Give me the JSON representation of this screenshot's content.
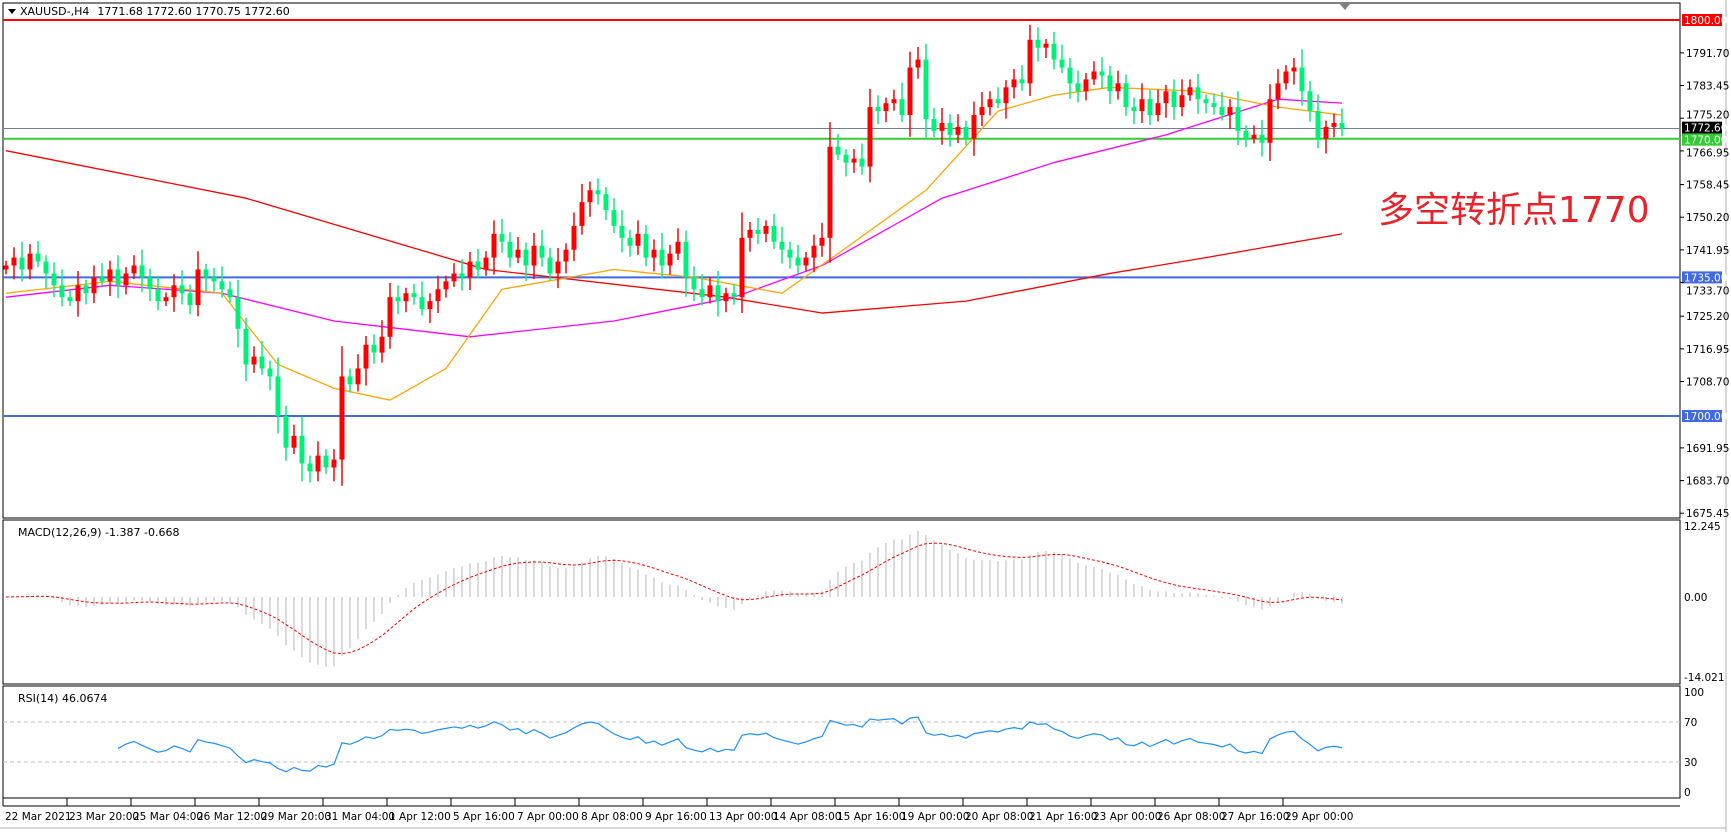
{
  "window": {
    "title": "XAUUSD-,H4",
    "ohlc": "1771.68 1772.60 1770.75 1772.60"
  },
  "annotation": "多空转折点1770",
  "colors": {
    "bull": "#ff0000",
    "bear": "#00f07a",
    "ma_fast": "#ffa500",
    "ma_mid": "#ff00ff",
    "ma_slow": "#ff0000",
    "level_1800": "#ff0000",
    "level_1770": "#32cd32",
    "level_support": "#4169e1",
    "bid": "#708090",
    "macd_hist": "#c0c0c0",
    "macd_signal": "#ff0000",
    "rsi": "#1e90ff"
  },
  "chart_data": {
    "type": "candlestick",
    "symbol": "XAUUSD-",
    "timeframe": "H4",
    "price_axis": {
      "ylim": [
        1675.45,
        1800.0
      ],
      "ticks": [
        "1791.70",
        "1783.45",
        "1775.20",
        "1766.95",
        "1758.45",
        "1750.20",
        "1741.95",
        "1733.70",
        "1725.20",
        "1716.95",
        "1708.70",
        "1691.95",
        "1683.70",
        "1675.45"
      ]
    },
    "time_axis": {
      "ticks": [
        "22 Mar 2021",
        "23 Mar 20:00",
        "25 Mar 04:00",
        "26 Mar 12:00",
        "29 Mar 20:00",
        "31 Mar 04:00",
        "1 Apr 12:00",
        "5 Apr 16:00",
        "7 Apr 00:00",
        "8 Apr 08:00",
        "9 Apr 16:00",
        "13 Apr 00:00",
        "14 Apr 08:00",
        "15 Apr 16:00",
        "19 Apr 00:00",
        "20 Apr 08:00",
        "21 Apr 16:00",
        "23 Apr 00:00",
        "26 Apr 08:00",
        "27 Apr 16:00",
        "29 Apr 00:00"
      ]
    },
    "closes": [
      1738,
      1740,
      1737,
      1741,
      1739,
      1736,
      1733,
      1730,
      1729,
      1733,
      1731,
      1735,
      1734,
      1737,
      1733,
      1736,
      1738,
      1735,
      1732,
      1729,
      1730,
      1733,
      1731,
      1728,
      1737,
      1735,
      1734,
      1732,
      1730,
      1722,
      1713,
      1715,
      1712,
      1710,
      1700,
      1692,
      1695,
      1688,
      1686,
      1690,
      1687,
      1689,
      1710,
      1708,
      1712,
      1718,
      1716,
      1720,
      1730,
      1729,
      1731,
      1730,
      1727,
      1729,
      1732,
      1734,
      1736,
      1735,
      1739,
      1737,
      1740,
      1746,
      1744,
      1740,
      1742,
      1738,
      1743,
      1740,
      1736,
      1739,
      1742,
      1748,
      1754,
      1757,
      1756,
      1752,
      1748,
      1745,
      1743,
      1746,
      1740,
      1742,
      1738,
      1741,
      1744,
      1735,
      1732,
      1730,
      1733,
      1729,
      1731,
      1730,
      1745,
      1747,
      1746,
      1748,
      1744,
      1742,
      1740,
      1738,
      1740,
      1743,
      1745,
      1768,
      1766,
      1764,
      1765,
      1763,
      1778,
      1777,
      1779,
      1780,
      1776,
      1788,
      1790,
      1775,
      1772,
      1774,
      1771,
      1773,
      1770,
      1776,
      1778,
      1780,
      1779,
      1783,
      1785,
      1784,
      1795,
      1793,
      1794,
      1790,
      1788,
      1784,
      1782,
      1785,
      1787,
      1786,
      1782,
      1784,
      1778,
      1777,
      1780,
      1776,
      1779,
      1782,
      1778,
      1781,
      1783,
      1780,
      1779,
      1778,
      1776,
      1778,
      1772,
      1770,
      1771,
      1769,
      1780,
      1784,
      1787,
      1788,
      1782,
      1777,
      1770,
      1773,
      1774,
      1772.6
    ],
    "moving_averages": {
      "fast": [
        [
          0,
          1731
        ],
        [
          13,
          1734
        ],
        [
          27,
          1731
        ],
        [
          34,
          1713
        ],
        [
          41,
          1707
        ],
        [
          48,
          1704
        ],
        [
          55,
          1712
        ],
        [
          62,
          1732
        ],
        [
          76,
          1737
        ],
        [
          86,
          1735
        ],
        [
          97,
          1731
        ],
        [
          104,
          1741
        ],
        [
          115,
          1757
        ],
        [
          124,
          1777
        ],
        [
          131,
          1781
        ],
        [
          138,
          1783
        ],
        [
          149,
          1782
        ],
        [
          159,
          1778
        ],
        [
          167,
          1776
        ]
      ],
      "mid": [
        [
          0,
          1730
        ],
        [
          13,
          1733
        ],
        [
          27,
          1731
        ],
        [
          41,
          1724
        ],
        [
          58,
          1720
        ],
        [
          76,
          1724
        ],
        [
          91,
          1730
        ],
        [
          102,
          1738
        ],
        [
          117,
          1755
        ],
        [
          131,
          1764
        ],
        [
          145,
          1771
        ],
        [
          159,
          1780
        ],
        [
          167,
          1779
        ]
      ],
      "slow": [
        [
          0,
          1767
        ],
        [
          30,
          1755
        ],
        [
          60,
          1737
        ],
        [
          90,
          1730
        ],
        [
          102,
          1726
        ],
        [
          120,
          1729
        ],
        [
          138,
          1736
        ],
        [
          150,
          1740
        ],
        [
          167,
          1746
        ]
      ]
    },
    "levels": [
      {
        "price": "1800.00",
        "kind": "resistance"
      },
      {
        "price": "1772.60",
        "kind": "bid"
      },
      {
        "price": "1770.00",
        "kind": "pivot"
      },
      {
        "price": "1735.00",
        "kind": "support"
      },
      {
        "price": "1700.00",
        "kind": "support"
      }
    ],
    "macd": {
      "label": "MACD(12,26,9) -1.387 -0.668",
      "params": [
        12,
        26,
        9
      ],
      "ylim": [
        -14.021,
        12.245
      ],
      "ticks": [
        "12.245",
        "0.00",
        "-14.021"
      ]
    },
    "rsi": {
      "label": "RSI(14) 46.0674",
      "period": 14,
      "ylim": [
        0,
        100
      ],
      "ticks": [
        "100",
        "70",
        "30",
        "0"
      ],
      "levels": [
        70,
        30
      ]
    }
  }
}
